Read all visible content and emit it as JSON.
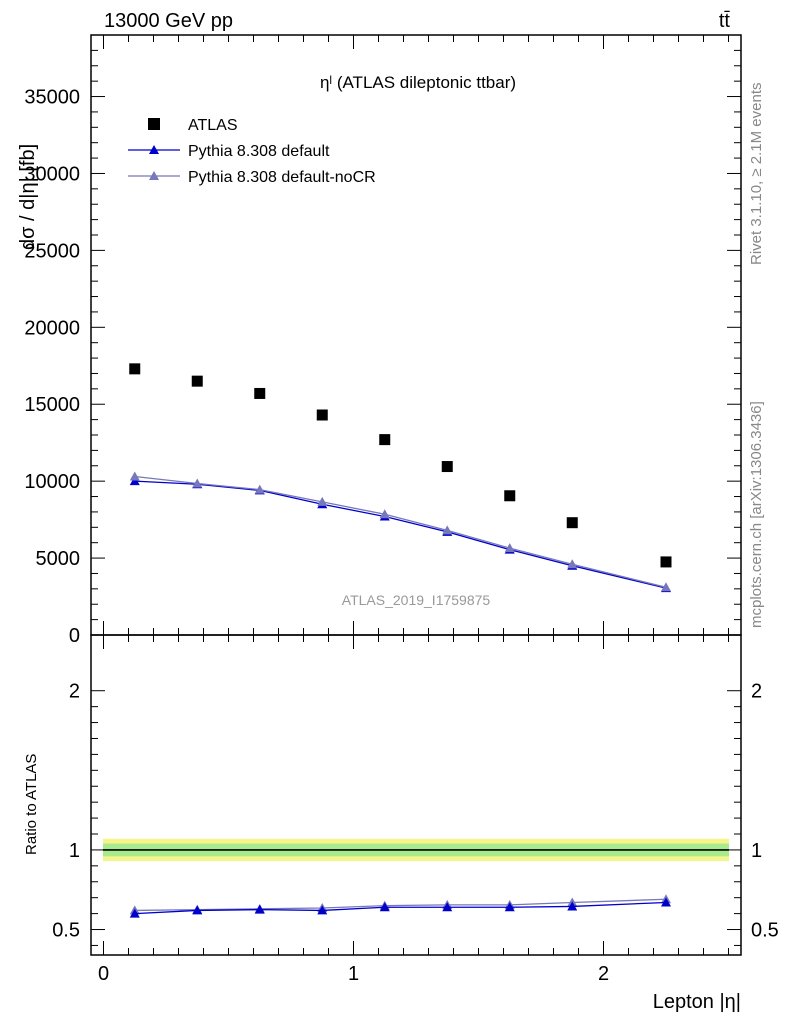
{
  "header": {
    "beam": "13000 GeV pp",
    "process": "tt̄",
    "side_label_top": "Rivet 3.1.10, ≥ 2.1M events",
    "side_label_bottom": "mcplots.cern.ch [arXiv:1306.3436]",
    "analysis_id": "ATLAS_2019_I1759875"
  },
  "chart_data": [
    {
      "type": "scatter",
      "title": "ηˡ (ATLAS dileptonic ttbar)",
      "ylabel": "dσ / d|η| [fb]",
      "xlim": [
        -0.05,
        2.55
      ],
      "ylim": [
        0,
        39000
      ],
      "yticks": [
        "0",
        "5000",
        "10000",
        "15000",
        "20000",
        "25000",
        "30000",
        "35000"
      ],
      "legend_position": "top-left",
      "x": [
        0.125,
        0.375,
        0.625,
        0.875,
        1.125,
        1.375,
        1.625,
        1.875,
        2.25
      ],
      "series": [
        {
          "name": "ATLAS",
          "marker": "square",
          "color": "#000000",
          "values": [
            17300,
            16500,
            15700,
            14300,
            12700,
            10950,
            9050,
            7300,
            4750
          ]
        },
        {
          "name": "Pythia 8.308 default",
          "marker": "triangle",
          "color": "#0000cc",
          "values": [
            10000,
            9800,
            9400,
            8500,
            7700,
            6700,
            5550,
            4500,
            3050
          ]
        },
        {
          "name": "Pythia 8.308 default-noCR",
          "marker": "triangle",
          "color": "#7777bb",
          "values": [
            10300,
            9850,
            9450,
            8650,
            7850,
            6800,
            5650,
            4600,
            3100
          ]
        }
      ]
    },
    {
      "type": "line",
      "ylabel": "Ratio to ATLAS",
      "xlabel": "Lepton |η|",
      "xlim": [
        -0.05,
        2.55
      ],
      "ylim": [
        0.34,
        2.35
      ],
      "xticks": [
        "0",
        "1",
        "2"
      ],
      "yticks": [
        "0.5",
        "1",
        "2"
      ],
      "reference_band": {
        "center": 1.0,
        "inner": 0.04,
        "outer": 0.07
      },
      "x": [
        0.125,
        0.375,
        0.625,
        0.875,
        1.125,
        1.375,
        1.625,
        1.875,
        2.25
      ],
      "series": [
        {
          "name": "Pythia 8.308 default",
          "color": "#0000cc",
          "values": [
            0.6,
            0.62,
            0.625,
            0.62,
            0.64,
            0.64,
            0.64,
            0.645,
            0.67
          ]
        },
        {
          "name": "Pythia 8.308 default-noCR",
          "color": "#7777bb",
          "values": [
            0.62,
            0.625,
            0.63,
            0.635,
            0.65,
            0.655,
            0.655,
            0.67,
            0.69
          ]
        }
      ]
    }
  ]
}
